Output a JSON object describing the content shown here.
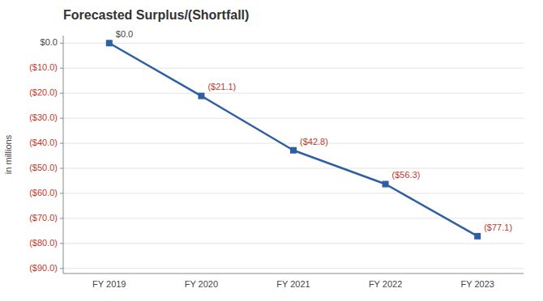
{
  "chart_data": {
    "type": "line",
    "title": "Forecasted Surplus/(Shortfall)",
    "ylabel": "in millions",
    "categories": [
      "FY 2019",
      "FY 2020",
      "FY 2021",
      "FY 2022",
      "FY 2023"
    ],
    "values": [
      0.0,
      -21.1,
      -42.8,
      -56.3,
      -77.1
    ],
    "value_labels": [
      "$0.0",
      "($21.1)",
      "($42.8)",
      "($56.3)",
      "($77.1)"
    ],
    "color": "#2E5FA3",
    "marker": "square",
    "data_labels": true,
    "grid": true,
    "ylim": [
      -92,
      3
    ],
    "yticks": [
      {
        "value": 0,
        "label": "$0.0"
      },
      {
        "value": -10,
        "label": "($10.0)"
      },
      {
        "value": -20,
        "label": "($20.0)"
      },
      {
        "value": -30,
        "label": "($30.0)"
      },
      {
        "value": -40,
        "label": "($40.0)"
      },
      {
        "value": -50,
        "label": "($50.0)"
      },
      {
        "value": -60,
        "label": "($60.0)"
      },
      {
        "value": -70,
        "label": "($70.0)"
      },
      {
        "value": -80,
        "label": "($80.0)"
      },
      {
        "value": -90,
        "label": "($90.0)"
      }
    ]
  }
}
